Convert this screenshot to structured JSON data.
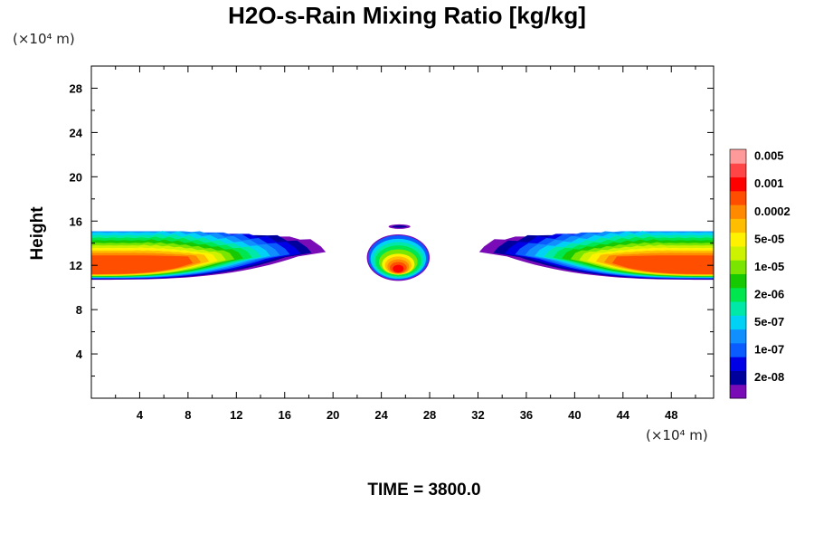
{
  "chart_data": {
    "type": "contour",
    "title": "H2O-s-Rain Mixing Ratio [kg/kg]",
    "xlabel": "",
    "ylabel": "Height",
    "x_unit": "(×10⁴ m)",
    "y_unit": "(×10⁴ m)",
    "footer": "TIME = 3800.0",
    "xlim": [
      0,
      51.5
    ],
    "ylim": [
      0,
      30
    ],
    "x_ticks": [
      4,
      8,
      12,
      16,
      20,
      24,
      28,
      32,
      36,
      40,
      44,
      48
    ],
    "y_ticks": [
      4,
      8,
      12,
      16,
      20,
      24,
      28
    ],
    "grid": false,
    "colorbar": {
      "levels": [
        "2e-08",
        "1e-07",
        "5e-07",
        "2e-06",
        "1e-05",
        "5e-05",
        "0.0002",
        "0.001",
        "0.005"
      ],
      "colors": [
        "#7a0cb8",
        "#00009c",
        "#0000e6",
        "#0a5cff",
        "#1090ff",
        "#00d2f5",
        "#00e8a8",
        "#00e64e",
        "#16c900",
        "#7ae600",
        "#ccf200",
        "#fff200",
        "#ffbd00",
        "#ff8a00",
        "#ff4e00",
        "#ff0000",
        "#ff4545",
        "#ff9a9a"
      ]
    },
    "regions": [
      {
        "name": "left band",
        "x_range": [
          0,
          19
        ],
        "height_range": [
          10.7,
          16.3
        ]
      },
      {
        "name": "central cell",
        "x_range": [
          22.7,
          27.6
        ],
        "height_range": [
          10.8,
          15.5
        ]
      },
      {
        "name": "right band",
        "x_range": [
          33,
          51.5
        ],
        "height_range": [
          10.7,
          16.3
        ]
      }
    ]
  }
}
